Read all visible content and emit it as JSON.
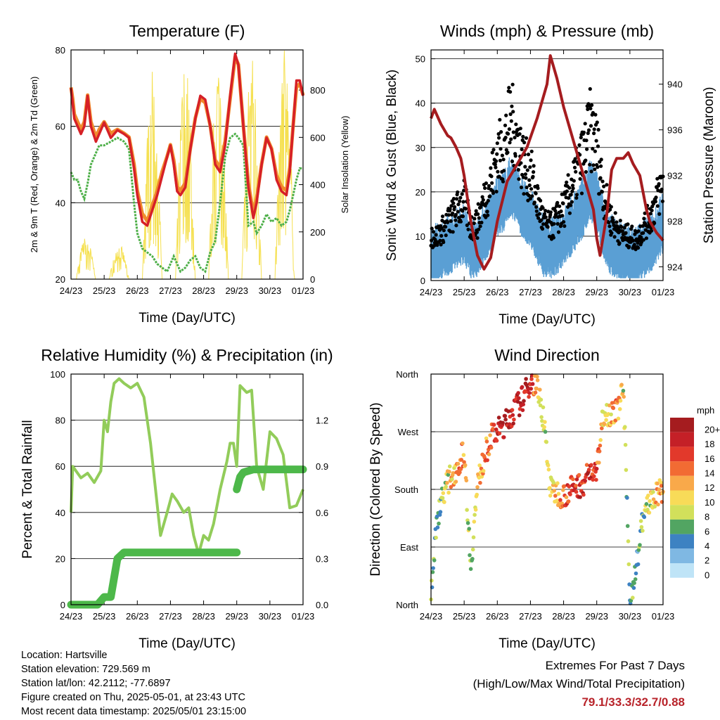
{
  "colors": {
    "temp2m": "#d62027",
    "temp9m": "#f08a2c",
    "dewpoint": "#4daf48",
    "solar": "#f5e050",
    "sonic": "#5a9fd4",
    "gust": "#000000",
    "pressure": "#a51c1f",
    "rh": "#92cc5a",
    "precip": "#4db84a",
    "extremes": "#b8232a"
  },
  "x_ticks": [
    "24/23",
    "25/23",
    "26/23",
    "27/23",
    "28/23",
    "29/23",
    "30/23",
    "01/23"
  ],
  "chart_data": [
    {
      "id": "temperature",
      "type": "line",
      "title": "Temperature (F)",
      "xlabel": "Time (Day/UTC)",
      "ylabel": "2m & 9m T (Red, Orange) & 2m Td (Green)",
      "y2label": "Solar Insolation (Yellow)",
      "ylim": [
        20,
        80
      ],
      "yticks": [
        "20",
        "40",
        "60",
        "80"
      ],
      "y2lim": [
        0,
        970
      ],
      "y2ticks": [
        {
          "v": 0,
          "t": "0"
        },
        {
          "v": 200,
          "t": "200"
        },
        {
          "v": 400,
          "t": "400"
        },
        {
          "v": 600,
          "t": "600"
        },
        {
          "v": 800,
          "t": "800"
        }
      ],
      "x": [
        0,
        0.05,
        0.1,
        0.2,
        0.3,
        0.4,
        0.5,
        0.6,
        0.75,
        0.85,
        1.0,
        1.2,
        1.4,
        1.6,
        1.75,
        1.9,
        2.0,
        2.15,
        2.3,
        2.45,
        2.6,
        2.75,
        2.9,
        3.0,
        3.1,
        3.2,
        3.3,
        3.45,
        3.6,
        3.75,
        3.9,
        4.05,
        4.2,
        4.35,
        4.5,
        4.65,
        4.8,
        4.95,
        5.05,
        5.2,
        5.35,
        5.5,
        5.6,
        5.75,
        5.9,
        6.05,
        6.2,
        6.35,
        6.5,
        6.6,
        6.7,
        6.8,
        6.9,
        7.0
      ],
      "series": [
        {
          "key": "t2m",
          "values": [
            70,
            66,
            62,
            60,
            58,
            60,
            68,
            60,
            56,
            58,
            61,
            57,
            59,
            58,
            57,
            49,
            42,
            35,
            34,
            38,
            42,
            47,
            52,
            55,
            50,
            43,
            42,
            44,
            54,
            62,
            68,
            67,
            60,
            50,
            48,
            55,
            68,
            79,
            76,
            60,
            44,
            36,
            40,
            50,
            57,
            54,
            46,
            43,
            42,
            48,
            60,
            72,
            72,
            68
          ]
        },
        {
          "key": "t9m",
          "values": [
            70,
            67,
            63,
            61,
            59,
            61,
            68,
            61,
            57,
            59,
            61,
            58,
            59,
            58,
            57,
            50,
            43,
            37,
            35,
            39,
            43,
            48,
            52,
            55,
            51,
            44,
            43,
            45,
            54,
            62,
            67,
            66,
            60,
            51,
            49,
            56,
            67,
            78,
            76,
            60,
            45,
            37,
            41,
            50,
            57,
            54,
            47,
            44,
            43,
            49,
            60,
            70,
            71,
            68
          ]
        },
        {
          "key": "td",
          "values": [
            48,
            47,
            46,
            46,
            43,
            41,
            45,
            50,
            53,
            55,
            55,
            56,
            57,
            56,
            54,
            40,
            32,
            28,
            27,
            26,
            24,
            23,
            22,
            24,
            26,
            24,
            22,
            23,
            25,
            26,
            23,
            22,
            27,
            30,
            40,
            52,
            57,
            58,
            57,
            55,
            34,
            35,
            32,
            34,
            37,
            35,
            36,
            34,
            35,
            38,
            42,
            46,
            49,
            49
          ]
        }
      ],
      "solar_peaks": [
        {
          "center": 0.45,
          "peak": 180
        },
        {
          "center": 1.45,
          "peak": 150
        },
        {
          "center": 2.45,
          "peak": 880
        },
        {
          "center": 3.45,
          "peak": 930
        },
        {
          "center": 4.45,
          "peak": 950
        },
        {
          "center": 5.45,
          "peak": 960
        },
        {
          "center": 6.45,
          "peak": 980
        }
      ]
    },
    {
      "id": "winds",
      "type": "scatter",
      "title": "Winds (mph) & Pressure (mb)",
      "xlabel": "Time (Day/UTC)",
      "ylabel": "Sonic Wind & Gust (Blue, Black)",
      "y2label": "Station Pressure (Maroon)",
      "ylim": [
        0,
        52
      ],
      "yticks": [
        "0",
        "10",
        "20",
        "30",
        "40",
        "50"
      ],
      "y2lim": [
        922.8,
        943.0
      ],
      "y2ticks": [
        {
          "v": 924,
          "t": "924"
        },
        {
          "v": 928,
          "t": "928"
        },
        {
          "v": 932,
          "t": "932"
        },
        {
          "v": 936,
          "t": "936"
        },
        {
          "v": 940,
          "t": "940"
        }
      ],
      "x": [
        0,
        0.2,
        0.4,
        0.6,
        0.8,
        1.0,
        1.2,
        1.4,
        1.6,
        1.8,
        2.0,
        2.2,
        2.4,
        2.6,
        2.8,
        3.0,
        3.2,
        3.4,
        3.6,
        3.8,
        4.0,
        4.2,
        4.4,
        4.6,
        4.8,
        5.0,
        5.2,
        5.4,
        5.6,
        5.8,
        6.0,
        6.2,
        6.4,
        6.6,
        6.8,
        7.0
      ],
      "gust_mean": [
        10,
        10,
        12,
        14,
        16,
        18,
        12,
        13,
        18,
        22,
        28,
        30,
        36,
        32,
        26,
        24,
        18,
        13,
        12,
        14,
        16,
        20,
        24,
        28,
        34,
        30,
        20,
        14,
        12,
        10,
        10,
        9,
        12,
        14,
        18,
        22
      ],
      "sonic_ratio": 0.6,
      "pressure": {
        "x": [
          0,
          0.1,
          0.3,
          0.5,
          0.6,
          0.75,
          0.9,
          1.0,
          1.2,
          1.4,
          1.6,
          1.8,
          2.0,
          2.3,
          2.6,
          2.9,
          3.2,
          3.5,
          3.6,
          3.8,
          4.0,
          4.3,
          4.6,
          4.9,
          5.0,
          5.1,
          5.3,
          5.45,
          5.6,
          5.8,
          5.95,
          6.1,
          6.3,
          6.5,
          6.6,
          6.8,
          6.95,
          7.0
        ],
        "values": [
          937,
          937.8,
          936.5,
          935.5,
          935.3,
          934.5,
          933.5,
          932,
          928,
          925,
          923.8,
          924.8,
          928,
          931.5,
          933,
          934.5,
          937,
          940,
          942.5,
          940.5,
          938,
          935,
          932,
          929,
          926.5,
          925,
          928.5,
          932.5,
          933.5,
          933.5,
          934,
          933,
          932,
          929,
          928,
          927,
          926.5,
          926.3
        ]
      }
    },
    {
      "id": "humidity",
      "type": "line",
      "title": "Relative Humidity (%) & Precipitation (in)",
      "xlabel": "Time (Day/UTC)",
      "ylabel": "Percent & Total Rainfall",
      "ylim": [
        0,
        100
      ],
      "yticks": [
        "0",
        "20",
        "40",
        "60",
        "80",
        "100"
      ],
      "y2lim": [
        0,
        1.5
      ],
      "y2ticks": [
        {
          "v": 0,
          "t": "0.0"
        },
        {
          "v": 0.3,
          "t": "0.3"
        },
        {
          "v": 0.6,
          "t": "0.6"
        },
        {
          "v": 0.9,
          "t": "0.9"
        },
        {
          "v": 1.2,
          "t": "1.2"
        }
      ],
      "rh": {
        "x": [
          0,
          0.05,
          0.15,
          0.3,
          0.5,
          0.7,
          0.9,
          1.0,
          1.1,
          1.2,
          1.3,
          1.45,
          1.6,
          1.8,
          2.0,
          2.2,
          2.4,
          2.55,
          2.7,
          2.9,
          3.05,
          3.2,
          3.4,
          3.55,
          3.7,
          3.85,
          4.0,
          4.15,
          4.3,
          4.5,
          4.7,
          4.8,
          4.9,
          5.0,
          5.1,
          5.3,
          5.45,
          5.6,
          5.8,
          6.0,
          6.2,
          6.4,
          6.6,
          6.8,
          7.0
        ],
        "values": [
          40,
          60,
          58,
          55,
          57,
          53,
          58,
          80,
          75,
          88,
          96,
          98,
          96,
          94,
          96,
          90,
          70,
          50,
          30,
          40,
          48,
          45,
          40,
          42,
          30,
          22,
          30,
          28,
          35,
          50,
          62,
          70,
          70,
          60,
          95,
          92,
          93,
          60,
          50,
          75,
          72,
          65,
          42,
          43,
          50
        ]
      },
      "precip": {
        "x": [
          0,
          0.8,
          1.0,
          1.2,
          1.4,
          1.6,
          2.0,
          3.0,
          4.0,
          5.0,
          5.0,
          5.1,
          5.2,
          5.5,
          6.0,
          7.0
        ],
        "values": [
          0.0,
          0.0,
          0.05,
          0.05,
          0.3,
          0.34,
          0.34,
          0.34,
          0.34,
          0.34,
          0.75,
          0.83,
          0.86,
          0.88,
          0.88,
          0.88
        ]
      }
    },
    {
      "id": "wind_direction",
      "type": "scatter",
      "title": "Wind Direction",
      "xlabel": "Time (Day/UTC)",
      "ylabel": "Direction (Colored By Speed)",
      "ylim": [
        0,
        360
      ],
      "ytick_labels": [
        "North",
        "East",
        "South",
        "West",
        "North"
      ],
      "x": [
        0,
        0.2,
        0.4,
        0.6,
        0.8,
        1.0,
        1.2,
        1.4,
        1.6,
        1.8,
        2.0,
        2.2,
        2.4,
        2.6,
        2.8,
        3.0,
        3.2,
        3.4,
        3.6,
        3.8,
        4.0,
        4.2,
        4.4,
        4.6,
        4.8,
        5.0,
        5.2,
        5.4,
        5.6,
        5.8,
        6.0,
        6.2,
        6.4,
        6.6,
        6.8,
        7.0
      ],
      "direction": [
        20,
        140,
        180,
        200,
        215,
        240,
        60,
        185,
        230,
        260,
        270,
        280,
        295,
        310,
        325,
        350,
        340,
        290,
        180,
        175,
        170,
        180,
        185,
        190,
        210,
        205,
        300,
        300,
        300,
        340,
        10,
        60,
        140,
        160,
        170,
        180
      ],
      "speed": [
        8,
        5,
        9,
        12,
        13,
        14,
        6,
        12,
        13,
        16,
        19,
        20,
        20,
        19,
        20,
        20,
        11,
        9,
        10,
        12,
        16,
        17,
        17,
        18,
        19,
        17,
        11,
        12,
        14,
        10,
        7,
        5,
        8,
        10,
        12,
        13
      ],
      "legend_title": "mph",
      "legend": [
        {
          "label": "20+",
          "color": "#a51c1f"
        },
        {
          "label": "18",
          "color": "#c42027"
        },
        {
          "label": "16",
          "color": "#e2392b"
        },
        {
          "label": "14",
          "color": "#f26b33"
        },
        {
          "label": "12",
          "color": "#f9a94a"
        },
        {
          "label": "10",
          "color": "#f8db58"
        },
        {
          "label": "8",
          "color": "#d2e05b"
        },
        {
          "label": "6",
          "color": "#52a562"
        },
        {
          "label": "4",
          "color": "#3d82c2"
        },
        {
          "label": "2",
          "color": "#7fb8e3"
        },
        {
          "label": "0",
          "color": "#bfe4f7"
        }
      ]
    }
  ],
  "info": {
    "location": "Location: Hartsville",
    "elevation": "Station elevation: 729.569 m",
    "latlon": "Station lat/lon: 42.2112; -77.6897",
    "created": "Figure created on Thu, 2025-05-01, at 23:43 UTC",
    "recent": "Most recent data timestamp: 2025/05/01 23:15:00"
  },
  "extremes": {
    "title": "Extremes For Past 7 Days",
    "subtitle": "(High/Low/Max Wind/Total Precipitation)",
    "values": "79.1/33.3/32.7/0.88"
  }
}
